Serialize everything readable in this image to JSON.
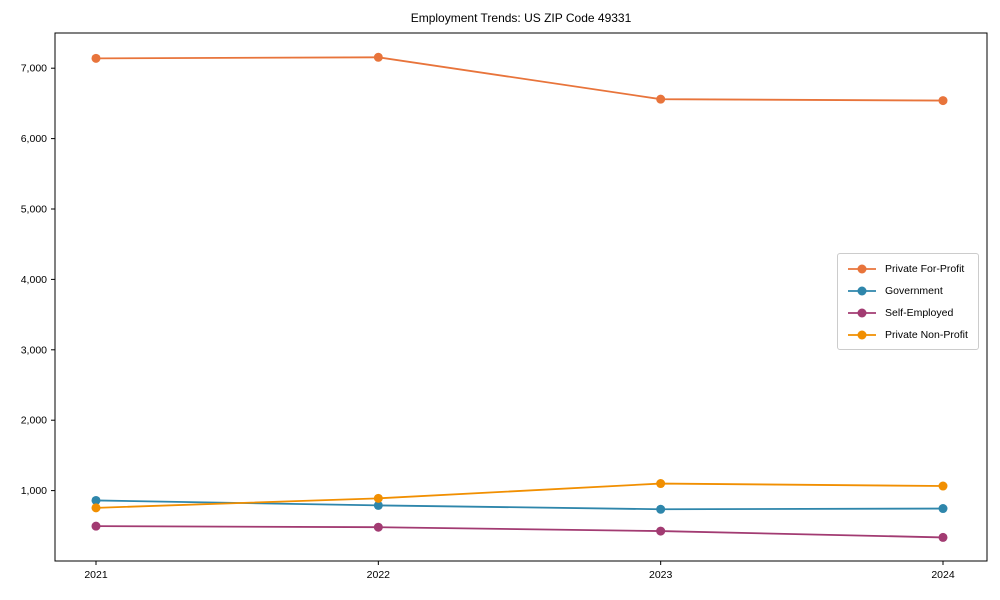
{
  "chart_data": {
    "type": "line",
    "title": "Employment Trends: US ZIP Code 49331",
    "x": [
      2021,
      2022,
      2023,
      2024
    ],
    "xtick_labels": [
      "2021",
      "2022",
      "2023",
      "2024"
    ],
    "ylim": [
      0,
      7500
    ],
    "yticks": [
      1000,
      2000,
      3000,
      4000,
      5000,
      6000,
      7000
    ],
    "ytick_labels": [
      "1,000",
      "2,000",
      "3,000",
      "4,000",
      "5,000",
      "6,000",
      "7,000"
    ],
    "grid": false,
    "legend_position": "center-right",
    "series": [
      {
        "name": "Private For-Profit",
        "color": "#E8743B",
        "values": [
          7140,
          7155,
          6560,
          6540
        ]
      },
      {
        "name": "Government",
        "color": "#2E86AB",
        "values": [
          860,
          790,
          735,
          745
        ]
      },
      {
        "name": "Self-Employed",
        "color": "#A23B72",
        "values": [
          495,
          480,
          425,
          335
        ]
      },
      {
        "name": "Private Non-Profit",
        "color": "#F18F01",
        "values": [
          755,
          890,
          1100,
          1065
        ]
      }
    ]
  },
  "colors": {
    "axis": "#000000",
    "text": "#000000",
    "legend_border": "#cccccc",
    "background": "#ffffff"
  }
}
